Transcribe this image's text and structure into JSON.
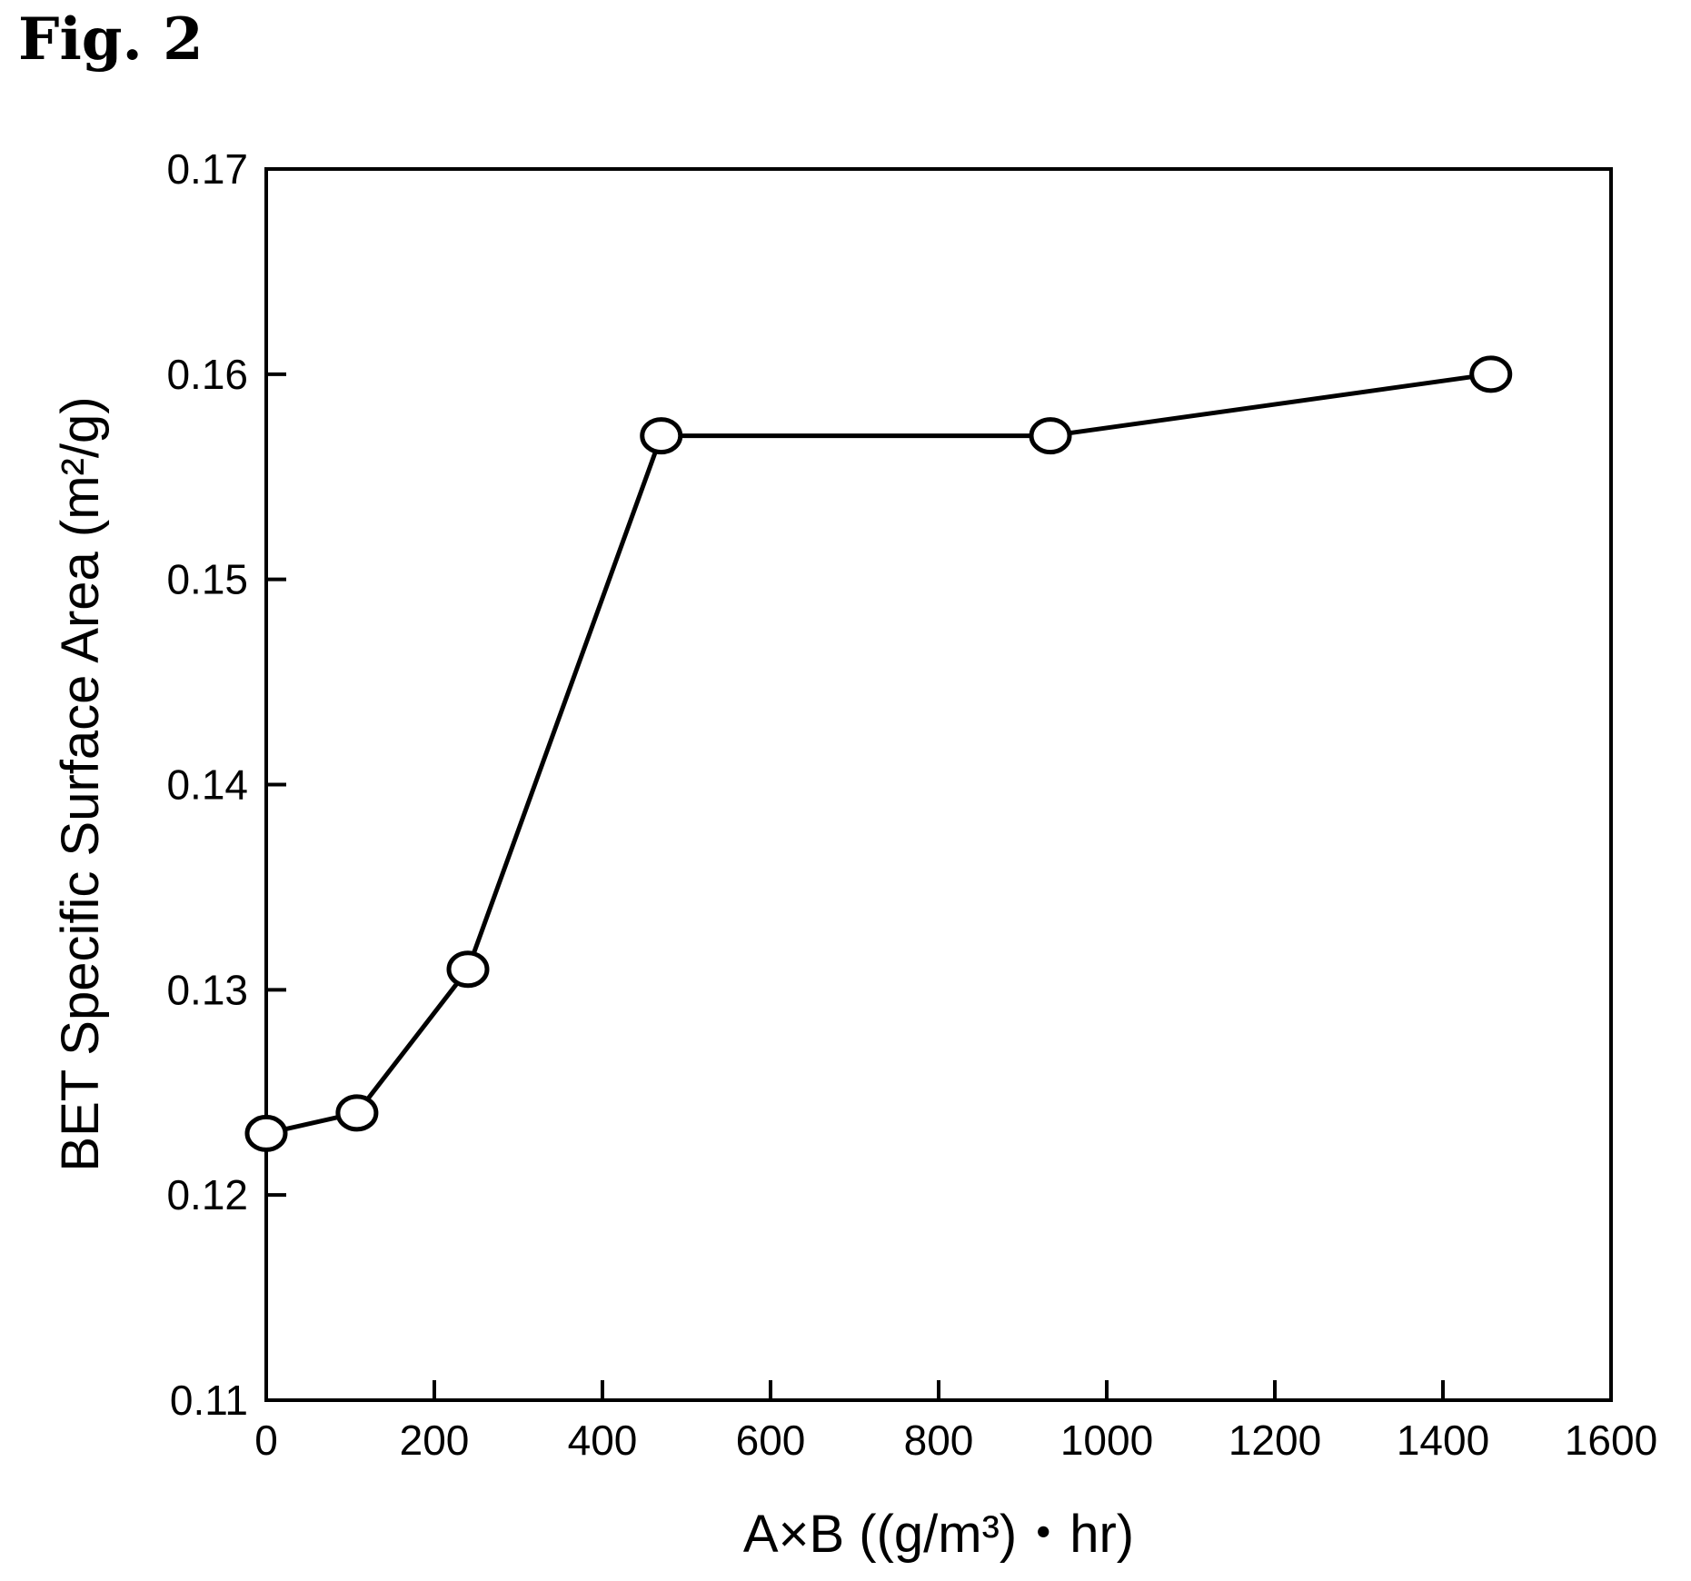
{
  "figure_label": "Fig. 2",
  "chart_data": {
    "type": "line",
    "title": "",
    "xlabel": "A×B ((g/m³)・hr)",
    "ylabel": "BET Specific Surface Area (m²/g)",
    "xlim": [
      0,
      1600
    ],
    "ylim": [
      0.11,
      0.17
    ],
    "x_ticks": [
      0,
      200,
      400,
      600,
      800,
      1000,
      1200,
      1400,
      1600
    ],
    "x_tick_labels": [
      "0",
      "200",
      "400",
      "600",
      "800",
      "1000",
      "1200",
      "1400",
      "1600"
    ],
    "y_ticks": [
      0.11,
      0.12,
      0.13,
      0.14,
      0.15,
      0.16,
      0.17
    ],
    "y_tick_labels": [
      "0.11",
      "0.12",
      "0.13",
      "0.14",
      "0.15",
      "0.16",
      "0.17"
    ],
    "grid": false,
    "marker": "open-circle",
    "series": [
      {
        "x": [
          0,
          108,
          240,
          470,
          933,
          1457
        ],
        "y": [
          0.123,
          0.124,
          0.131,
          0.157,
          0.157,
          0.16
        ]
      }
    ]
  }
}
